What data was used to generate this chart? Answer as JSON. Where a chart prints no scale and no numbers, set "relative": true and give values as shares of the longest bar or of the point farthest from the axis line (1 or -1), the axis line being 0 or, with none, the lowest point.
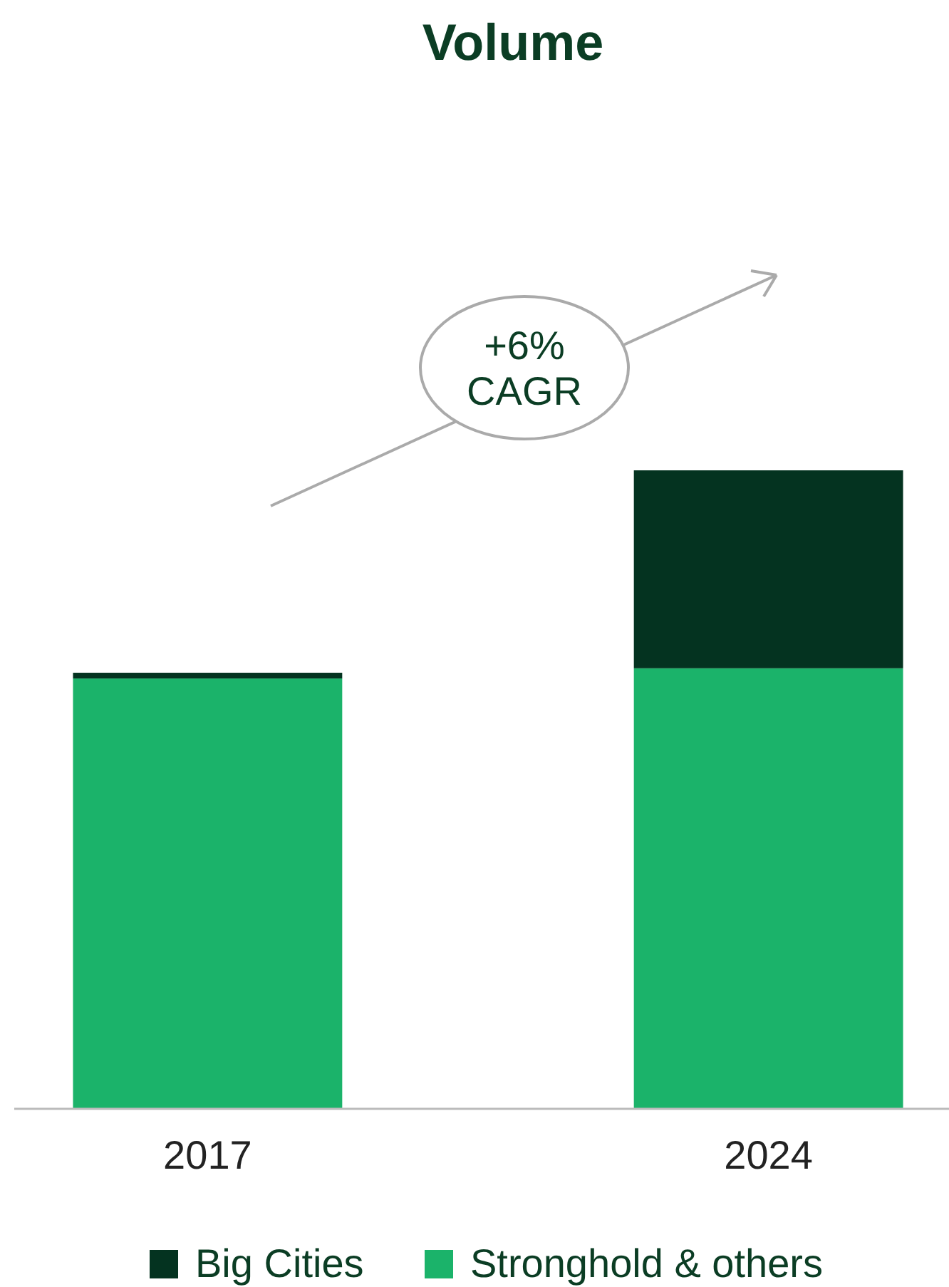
{
  "chart_data": {
    "type": "bar",
    "title": "Volume",
    "categories": [
      "2017",
      "2024"
    ],
    "stacked": true,
    "relative": true,
    "legend": "bottom",
    "series": [
      {
        "name": "Stronghold & others",
        "color": "#1bb36a",
        "values": [
          0.674,
          0.69
        ]
      },
      {
        "name": "Big Cities",
        "color": "#043320",
        "values": [
          0.009,
          0.31
        ]
      }
    ],
    "annotations": [
      "+6%\nCAGR"
    ]
  }
}
